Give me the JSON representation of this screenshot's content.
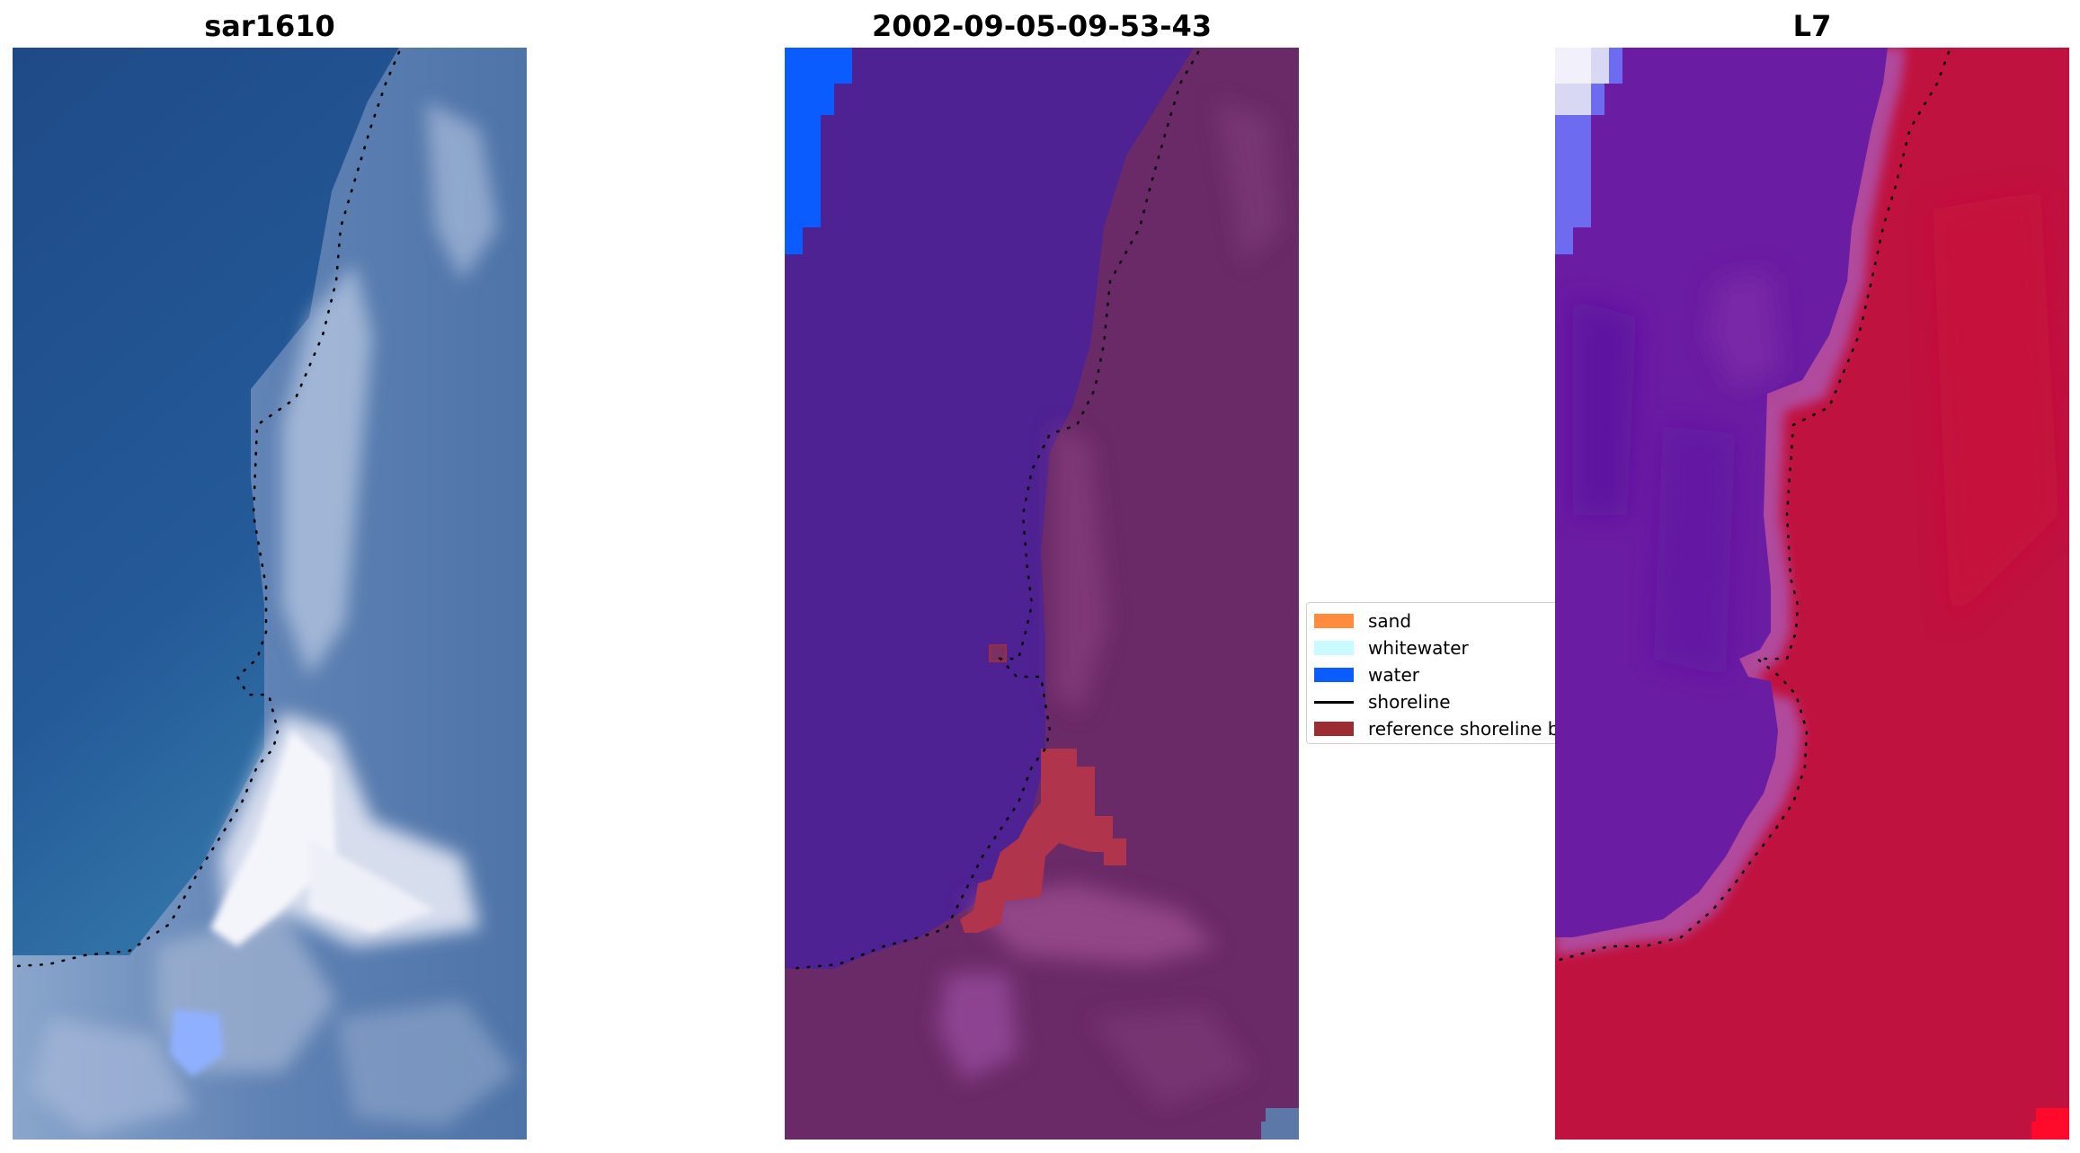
{
  "panels": [
    {
      "title": "sar1610",
      "kind": "rgb-image"
    },
    {
      "title": "2002-09-05-09-53-43",
      "kind": "classified-image"
    },
    {
      "title": "L7",
      "kind": "index-image"
    }
  ],
  "legend": {
    "items": [
      {
        "label": "sand",
        "color": "#ff8c3c",
        "kind": "patch"
      },
      {
        "label": "whitewater",
        "color": "#c8faff",
        "kind": "patch"
      },
      {
        "label": "water",
        "color": "#0a5cff",
        "kind": "patch"
      },
      {
        "label": "shoreline",
        "color": "#000000",
        "kind": "line"
      },
      {
        "label": "reference shoreline buffer",
        "color": "#9b2d32",
        "kind": "patch"
      }
    ]
  },
  "colors": {
    "ocean_deep": "#1f4e8c",
    "ocean_mid": "#3566a6",
    "land_grey": "#7f98bf",
    "white_sand": "#f0f2fa",
    "class_water_purple": "#4e2292",
    "class_land": "#6c2a68",
    "class_buffer": "#b0344c",
    "class_water_blue": "#0a5cff",
    "index_water": "#6a1ca2",
    "index_land": "#c0123f",
    "index_transition": "#b14a9c"
  }
}
